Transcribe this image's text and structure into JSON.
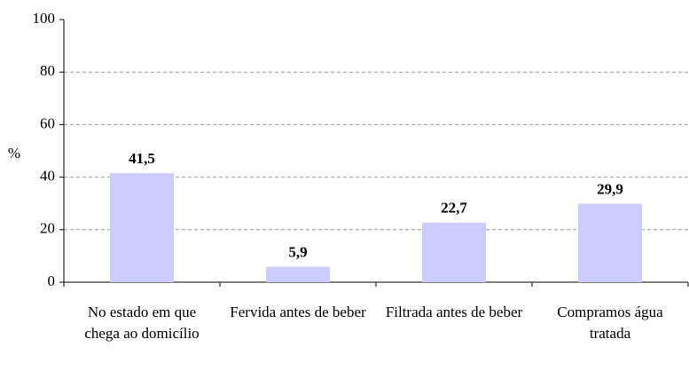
{
  "chart_data": {
    "type": "bar",
    "y_label": "%",
    "categories": [
      "No estado em que chega ao domicílio",
      "Fervida antes de beber",
      "Filtrada antes de beber",
      "Compramos água tratada"
    ],
    "values": [
      41.5,
      5.9,
      22.7,
      29.9
    ],
    "value_labels": [
      "41,5",
      "5,9",
      "22,7",
      "29,9"
    ],
    "color": "#ccccff",
    "ylim": [
      0,
      100
    ],
    "yticks": [
      0,
      20,
      40,
      60,
      80,
      100
    ],
    "grid": true
  }
}
